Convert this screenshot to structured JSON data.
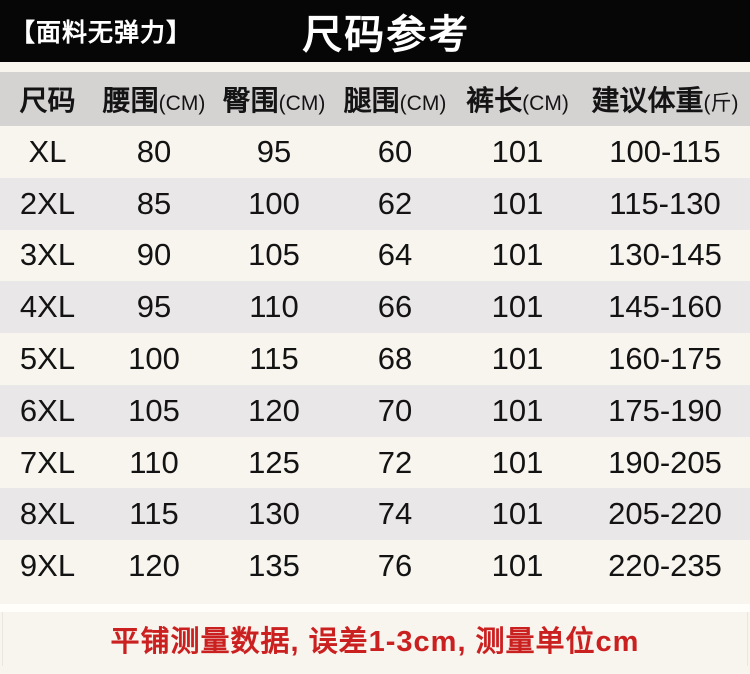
{
  "header": {
    "fabric_note": "【面料无弹力】",
    "title": "尺码参考"
  },
  "chart_data": {
    "type": "table",
    "title": "尺码参考",
    "columns": [
      {
        "label": "尺码",
        "unit": ""
      },
      {
        "label": "腰围",
        "unit": "(CM)"
      },
      {
        "label": "臀围",
        "unit": "(CM)"
      },
      {
        "label": "腿围",
        "unit": "(CM)"
      },
      {
        "label": "裤长",
        "unit": "(CM)"
      },
      {
        "label": "建议体重",
        "unit": "(斤)"
      }
    ],
    "rows": [
      [
        "XL",
        "80",
        "95",
        "60",
        "101",
        "100-115"
      ],
      [
        "2XL",
        "85",
        "100",
        "62",
        "101",
        "115-130"
      ],
      [
        "3XL",
        "90",
        "105",
        "64",
        "101",
        "130-145"
      ],
      [
        "4XL",
        "95",
        "110",
        "66",
        "101",
        "145-160"
      ],
      [
        "5XL",
        "100",
        "115",
        "68",
        "101",
        "160-175"
      ],
      [
        "6XL",
        "105",
        "120",
        "70",
        "101",
        "175-190"
      ],
      [
        "7XL",
        "110",
        "125",
        "72",
        "101",
        "190-205"
      ],
      [
        "8XL",
        "115",
        "130",
        "74",
        "101",
        "205-220"
      ],
      [
        "9XL",
        "120",
        "135",
        "76",
        "101",
        "220-235"
      ]
    ]
  },
  "footer": {
    "note": "平铺测量数据, 误差1-3cm, 测量单位cm"
  },
  "colors": {
    "topbar_bg": "#060606",
    "topbar_text": "#ffffff",
    "table_header_bg": "#d5d2d2",
    "row_stripe_bg": "#eae7e8",
    "page_bg": "#f8f4ee",
    "accent_red": "#cb2020",
    "body_text": "#131313"
  }
}
